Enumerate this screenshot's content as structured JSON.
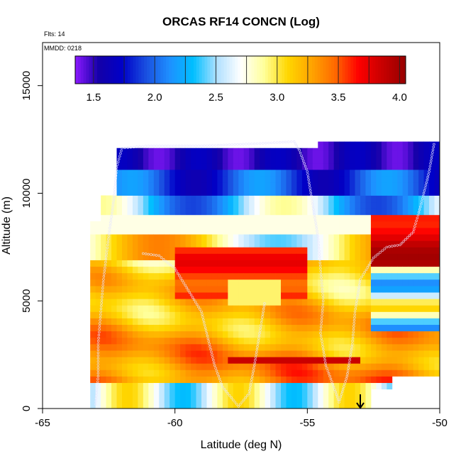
{
  "chart_data": {
    "type": "heatmap",
    "title": "ORCAS RF14 CONCN (Log)",
    "xlabel": "Latitude (deg N)",
    "ylabel": "Altitude (m)",
    "xlim": [
      -65,
      -50
    ],
    "ylim": [
      0,
      17000
    ],
    "x_ticks": [
      -65,
      -60,
      -55,
      -50
    ],
    "x_tick_labels": [
      "-65",
      "-60",
      "-55",
      "-50"
    ],
    "y_ticks": [
      0,
      5000,
      10000,
      15000
    ],
    "y_tick_labels": [
      "0",
      "5000",
      "10000",
      "15000"
    ],
    "annotation_flights": "Flts: 14",
    "annotation_date": "MMDD: 0218",
    "colorbar": {
      "range": [
        1.35,
        4.05
      ],
      "ticks": [
        1.5,
        2.0,
        2.5,
        3.0,
        3.5,
        4.0
      ],
      "tick_labels": [
        "1.5",
        "2.0",
        "2.5",
        "3.0",
        "3.5",
        "4.0"
      ],
      "colors": [
        "#8c1aff",
        "#1400a8",
        "#0000c8",
        "#1a4fe0",
        "#1e90ff",
        "#00bfff",
        "#b0e0ff",
        "#ffffff",
        "#ffff9a",
        "#ffd700",
        "#ffa500",
        "#ff6a00",
        "#ff0000",
        "#c80000",
        "#960000"
      ]
    },
    "grid": false,
    "flight_track": [
      [
        -63.0,
        200
      ],
      [
        -62.9,
        1500
      ],
      [
        -62.9,
        3000
      ],
      [
        -62.8,
        4500
      ],
      [
        -62.7,
        6000
      ],
      [
        -62.5,
        8000
      ],
      [
        -62.3,
        9800
      ],
      [
        -62.2,
        11200
      ],
      [
        -62.0,
        12100
      ],
      [
        -61.0,
        12200
      ],
      [
        -59.0,
        12200
      ],
      [
        -57.0,
        12300
      ],
      [
        -55.5,
        12400
      ],
      [
        -55.3,
        12000
      ],
      [
        -55.0,
        11000
      ],
      [
        -54.8,
        9500
      ],
      [
        -54.6,
        8000
      ],
      [
        -54.5,
        6500
      ],
      [
        -54.4,
        5000
      ],
      [
        -54.5,
        3500
      ],
      [
        -54.3,
        2000
      ],
      [
        -54.0,
        1000
      ],
      [
        -53.8,
        300
      ],
      [
        -53.5,
        1500
      ],
      [
        -53.3,
        3000
      ],
      [
        -53.2,
        4500
      ],
      [
        -53.0,
        6000
      ],
      [
        -52.5,
        7000
      ],
      [
        -52.0,
        7500
      ],
      [
        -51.5,
        7600
      ],
      [
        -51.0,
        8200
      ],
      [
        -50.7,
        9500
      ],
      [
        -50.4,
        11000
      ],
      [
        -50.2,
        12400
      ]
    ],
    "flight_track_2": [
      [
        -61.2,
        7200
      ],
      [
        -60.6,
        7100
      ],
      [
        -60.0,
        6500
      ],
      [
        -59.5,
        5500
      ],
      [
        -59.0,
        4500
      ],
      [
        -58.8,
        3500
      ],
      [
        -58.5,
        2000
      ],
      [
        -58.2,
        1000
      ],
      [
        -57.6,
        100
      ],
      [
        -57.2,
        700
      ],
      [
        -57.0,
        2000
      ],
      [
        -56.8,
        3500
      ],
      [
        -56.6,
        5000
      ]
    ],
    "mean_latitude_marker": -53.0
  }
}
